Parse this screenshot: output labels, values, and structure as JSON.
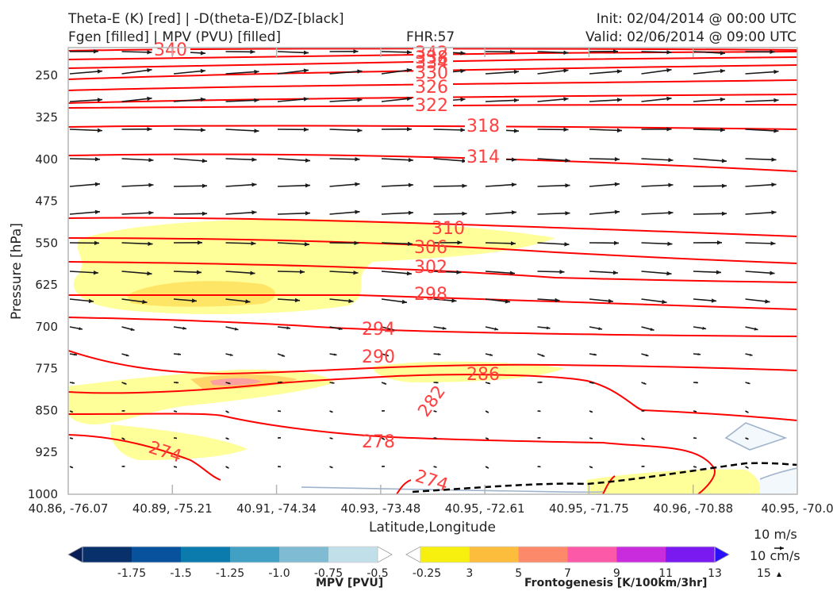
{
  "header": {
    "title_line1": "Theta-E (K) [red] | -D(theta-E)/DZ-[black]",
    "title_line2": "Fgen [filled] | MPV (PVU) [filled]",
    "fhr": "FHR:57",
    "init": "Init: 02/04/2014 @ 00:00 UTC",
    "valid": "Valid: 02/06/2014 @ 09:00 UTC"
  },
  "chart_data": {
    "type": "cross-section",
    "xlabel": "Latitude,Longitude",
    "ylabel": "Pressure [hPa]",
    "ylim": [
      1000,
      200
    ],
    "x_ticks": [
      "40.86, -76.07",
      "40.89, -75.21",
      "40.91, -74.34",
      "40.93, -73.48",
      "40.95, -72.61",
      "40.95, -71.75",
      "40.96, -70.88",
      "40.95, -70.0"
    ],
    "y_ticks": [
      250,
      325,
      400,
      475,
      550,
      625,
      700,
      775,
      850,
      925,
      1000
    ],
    "theta_e_contours": {
      "color": "#ff0000",
      "labels": [
        "340",
        "342",
        "338",
        "334",
        "330",
        "326",
        "322",
        "318",
        "314",
        "310",
        "306",
        "302",
        "298",
        "294",
        "290",
        "286",
        "282",
        "278",
        "274",
        "274"
      ]
    },
    "mpv_colorbar": {
      "label": "MPV [PVU]",
      "ticks": [
        "-1.75",
        "-1.5",
        "-1.25",
        "-1.0",
        "-0.75",
        "-0.5",
        "-0.25"
      ],
      "colors": [
        "#081d58",
        "#08306b",
        "#08519c",
        "#0b7bae",
        "#41a0c3",
        "#7fbcd3",
        "#c1dfe8",
        "#ffffff"
      ]
    },
    "fgen_colorbar": {
      "label": "Frontogenesis [K/100km/3hr]",
      "ticks": [
        "3",
        "5",
        "7",
        "9",
        "11",
        "13",
        "15"
      ],
      "colors": [
        "#ffffff",
        "#f7f00f",
        "#fcbc3c",
        "#fc8a6a",
        "#fc5aa8",
        "#c82cdc",
        "#7a1af0",
        "#2a10f8"
      ]
    },
    "wind_scale": {
      "horizontal": "10 m/s",
      "vertical": "10 cm/s"
    }
  }
}
